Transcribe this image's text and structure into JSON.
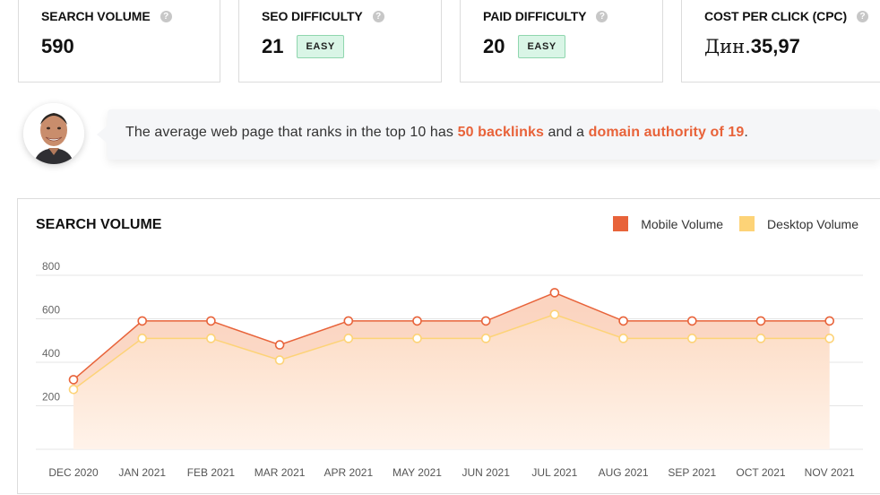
{
  "stats": [
    {
      "title": "SEARCH VOLUME",
      "value": "590",
      "prefix": "",
      "badge": ""
    },
    {
      "title": "SEO DIFFICULTY",
      "value": "21",
      "prefix": "",
      "badge": "EASY"
    },
    {
      "title": "PAID DIFFICULTY",
      "value": "20",
      "prefix": "",
      "badge": "EASY"
    },
    {
      "title": "COST PER CLICK (CPC)",
      "value": "35,97",
      "prefix": "Дин.",
      "badge": ""
    }
  ],
  "help_icon": {
    "glyph": "?"
  },
  "tip": {
    "prefix": "The average web page that ranks in the top 10 has ",
    "backlinks": "50 backlinks",
    "middle": " and a ",
    "authority": "domain authority of 19",
    "suffix": "."
  },
  "colors": {
    "accent": "#e8633a",
    "mobile": "#e8633a",
    "desktop": "#fdd377",
    "badge_bg": "#d9f5e6"
  },
  "chart_data": {
    "type": "area",
    "title": "SEARCH VOLUME",
    "categories": [
      "DEC 2020",
      "JAN 2021",
      "FEB 2021",
      "MAR 2021",
      "APR 2021",
      "MAY 2021",
      "JUN 2021",
      "JUL 2021",
      "AUG 2021",
      "SEP 2021",
      "OCT 2021",
      "NOV 2021"
    ],
    "series": [
      {
        "name": "Mobile Volume",
        "color": "#e8633a",
        "values": [
          320,
          590,
          590,
          480,
          590,
          590,
          590,
          720,
          590,
          590,
          590,
          590
        ]
      },
      {
        "name": "Desktop Volume",
        "color": "#fdd377",
        "values": [
          275,
          510,
          510,
          410,
          510,
          510,
          510,
          620,
          510,
          510,
          510,
          510
        ]
      }
    ],
    "yticks": [
      200,
      400,
      600,
      800
    ],
    "ylim": [
      0,
      800
    ],
    "grid": true,
    "legend": "top-right"
  }
}
